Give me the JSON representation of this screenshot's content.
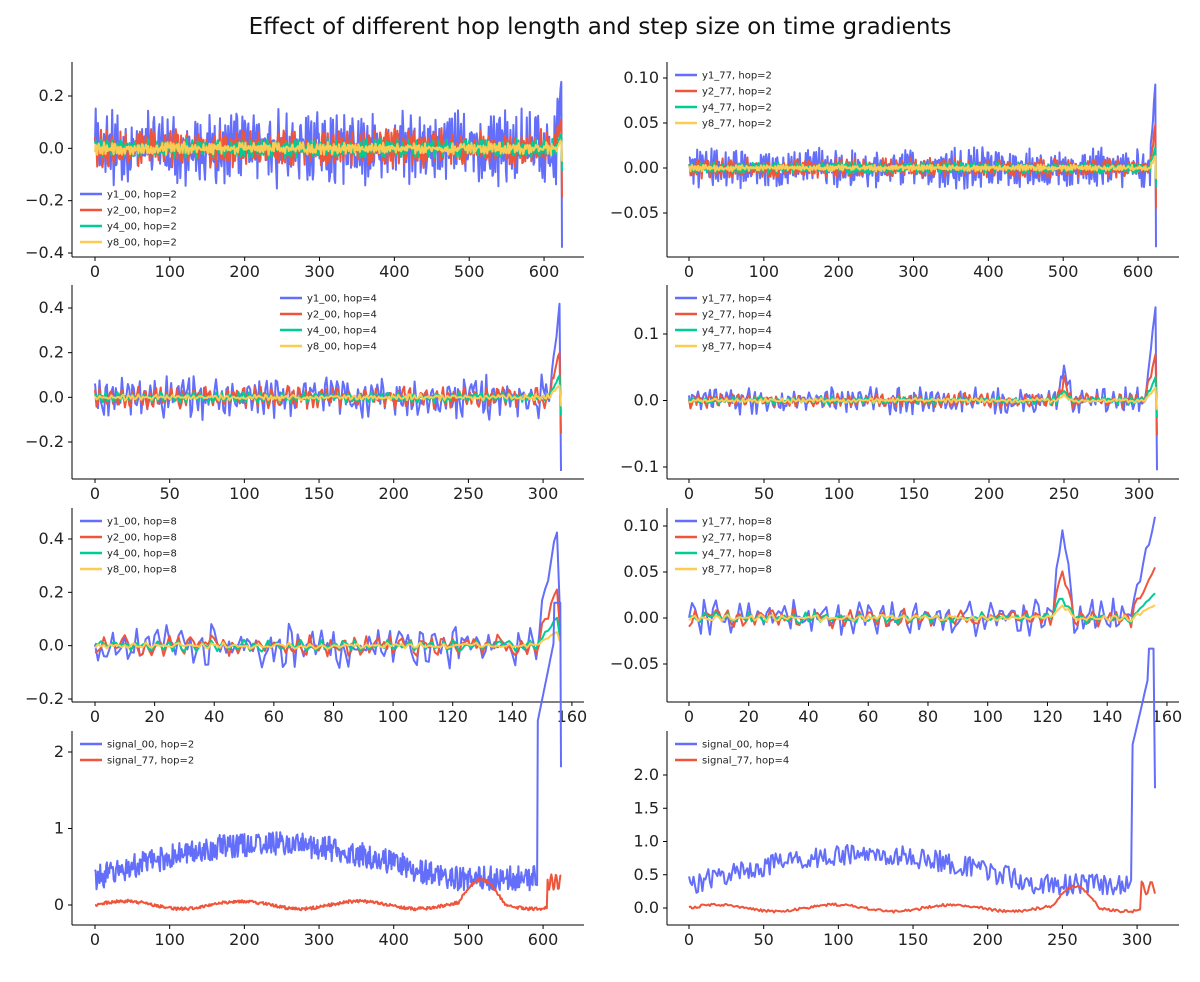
{
  "title": "Effect of different hop length and step size on time gradients",
  "colors": {
    "y1": "#636efa",
    "y2": "#ef553b",
    "y4": "#00cc96",
    "y8": "#fecb52",
    "axis": "#000000"
  },
  "chart_data": [
    {
      "type": "line",
      "position": "row 1, left",
      "legend": "bottom-left",
      "x_range": [
        0,
        624
      ],
      "ylim": [
        -0.4,
        0.33
      ],
      "xticks": [
        "0",
        "100",
        "200",
        "300",
        "400",
        "500",
        "600"
      ],
      "yticks": [
        "−0.4",
        "−0.2",
        "0.0",
        "0.2"
      ],
      "grid": false,
      "series": [
        {
          "name": "y1_00, hop=2",
          "color": "#636efa",
          "spread": 0.12,
          "end_values": [
            0.3,
            -0.38
          ]
        },
        {
          "name": "y2_00, hop=2",
          "color": "#ef553b",
          "spread": 0.06,
          "end_values": [
            0.12,
            -0.19
          ]
        },
        {
          "name": "y4_00, hop=2",
          "color": "#00cc96",
          "spread": 0.03,
          "end_values": [
            0.06,
            -0.09
          ]
        },
        {
          "name": "y8_00, hop=2",
          "color": "#fecb52",
          "spread": 0.02,
          "end_values": [
            0.03,
            -0.05
          ]
        }
      ]
    },
    {
      "type": "line",
      "position": "row 1, right",
      "legend": "top-left",
      "x_range": [
        0,
        624
      ],
      "ylim": [
        -0.09,
        0.11
      ],
      "xticks": [
        "0",
        "100",
        "200",
        "300",
        "400",
        "500",
        "600"
      ],
      "yticks": [
        "−0.05",
        "0.00",
        "0.05",
        "0.10"
      ],
      "grid": false,
      "series": [
        {
          "name": "y1_77, hop=2",
          "color": "#636efa",
          "spread": 0.018,
          "end_values": [
            0.107,
            -0.088
          ]
        },
        {
          "name": "y2_77, hop=2",
          "color": "#ef553b",
          "spread": 0.009,
          "end_values": [
            0.055,
            -0.045
          ]
        },
        {
          "name": "y4_77, hop=2",
          "color": "#00cc96",
          "spread": 0.005,
          "end_values": [
            0.027,
            -0.022
          ]
        },
        {
          "name": "y8_77, hop=2",
          "color": "#fecb52",
          "spread": 0.003,
          "end_values": [
            0.015,
            -0.012
          ]
        }
      ]
    },
    {
      "type": "line",
      "position": "row 2, left",
      "legend": "top-center",
      "x_range": [
        0,
        312
      ],
      "ylim": [
        -0.34,
        0.47
      ],
      "xticks": [
        "0",
        "50",
        "100",
        "150",
        "200",
        "250",
        "300"
      ],
      "yticks": [
        "−0.2",
        "0.0",
        "0.2",
        "0.4"
      ],
      "grid": false,
      "series": [
        {
          "name": "y1_00, hop=4",
          "color": "#636efa",
          "spread": 0.08,
          "end_values": [
            0.47,
            -0.33
          ]
        },
        {
          "name": "y2_00, hop=4",
          "color": "#ef553b",
          "spread": 0.04,
          "end_values": [
            0.23,
            -0.16
          ]
        },
        {
          "name": "y4_00, hop=4",
          "color": "#00cc96",
          "spread": 0.02,
          "end_values": [
            0.11,
            -0.08
          ]
        },
        {
          "name": "y8_00, hop=4",
          "color": "#fecb52",
          "spread": 0.012,
          "end_values": [
            0.06,
            -0.04
          ]
        }
      ]
    },
    {
      "type": "line",
      "position": "row 2, right",
      "legend": "top-left",
      "x_range": [
        0,
        312
      ],
      "ylim": [
        -0.105,
        0.165
      ],
      "xticks": [
        "0",
        "50",
        "100",
        "150",
        "200",
        "250",
        "300"
      ],
      "yticks": [
        "−0.1",
        "0.0",
        "0.1"
      ],
      "grid": false,
      "series": [
        {
          "name": "y1_77, hop=4",
          "color": "#636efa",
          "spread": 0.017,
          "end_values": [
            0.16,
            -0.105
          ]
        },
        {
          "name": "y2_77, hop=4",
          "color": "#ef553b",
          "spread": 0.009,
          "end_values": [
            0.08,
            -0.052
          ]
        },
        {
          "name": "y4_77, hop=4",
          "color": "#00cc96",
          "spread": 0.005,
          "end_values": [
            0.04,
            -0.026
          ]
        },
        {
          "name": "y8_77, hop=4",
          "color": "#fecb52",
          "spread": 0.003,
          "end_values": [
            0.022,
            -0.014
          ]
        }
      ]
    },
    {
      "type": "line",
      "position": "row 3, left",
      "legend": "top-left",
      "x_range": [
        0,
        156
      ],
      "ylim": [
        -0.18,
        0.49
      ],
      "xticks": [
        "0",
        "20",
        "40",
        "60",
        "80",
        "100",
        "120",
        "140",
        "160"
      ],
      "yticks": [
        "−0.2",
        "0.0",
        "0.2",
        "0.4"
      ],
      "grid": false,
      "series": [
        {
          "name": "y1_00, hop=8",
          "color": "#636efa",
          "spread": 0.07,
          "end_values": [
            0.49,
            0.12
          ]
        },
        {
          "name": "y2_00, hop=8",
          "color": "#ef553b",
          "spread": 0.035,
          "end_values": [
            0.24,
            0.06
          ]
        },
        {
          "name": "y4_00, hop=8",
          "color": "#00cc96",
          "spread": 0.018,
          "end_values": [
            0.12,
            0.03
          ]
        },
        {
          "name": "y8_00, hop=8",
          "color": "#fecb52",
          "spread": 0.01,
          "end_values": [
            0.06,
            0.015
          ]
        }
      ]
    },
    {
      "type": "line",
      "position": "row 3, right",
      "legend": "top-left",
      "x_range": [
        0,
        156
      ],
      "ylim": [
        -0.08,
        0.11
      ],
      "xticks": [
        "0",
        "20",
        "40",
        "60",
        "80",
        "100",
        "120",
        "140",
        "160"
      ],
      "yticks": [
        "−0.05",
        "0.00",
        "0.05",
        "0.10"
      ],
      "grid": false,
      "series": [
        {
          "name": "y1_77, hop=8",
          "color": "#636efa",
          "spread": 0.017,
          "end_values": [
            0.11,
            0.11
          ]
        },
        {
          "name": "y2_77, hop=8",
          "color": "#ef553b",
          "spread": 0.009,
          "end_values": [
            0.055,
            0.055
          ]
        },
        {
          "name": "y4_77, hop=8",
          "color": "#00cc96",
          "spread": 0.005,
          "end_values": [
            0.027,
            0.027
          ]
        },
        {
          "name": "y8_77, hop=8",
          "color": "#fecb52",
          "spread": 0.003,
          "end_values": [
            0.014,
            0.014
          ]
        }
      ]
    },
    {
      "type": "line",
      "position": "row 4, left",
      "legend": "top-left",
      "x_range": [
        0,
        624
      ],
      "ylim": [
        -0.1,
        2.15
      ],
      "xticks": [
        "0",
        "100",
        "200",
        "300",
        "400",
        "500",
        "600"
      ],
      "yticks": [
        "0",
        "1",
        "2"
      ],
      "grid": false,
      "series": [
        {
          "name": "signal_00, hop=2",
          "color": "#636efa",
          "start_value": 0.3,
          "peak_value": 2.15,
          "end_value": 1.8
        },
        {
          "name": "signal_77, hop=2",
          "color": "#ef553b",
          "start_value": 0.0,
          "peak_value": 0.4,
          "end_value": 0.3
        }
      ]
    },
    {
      "type": "line",
      "position": "row 4, right",
      "legend": "top-left",
      "x_range": [
        0,
        312
      ],
      "ylim": [
        -0.1,
        2.1
      ],
      "xticks": [
        "0",
        "50",
        "100",
        "150",
        "200",
        "250",
        "300"
      ],
      "yticks": [
        "0.0",
        "0.5",
        "1.0",
        "1.5",
        "2.0"
      ],
      "grid": false,
      "series": [
        {
          "name": "signal_00, hop=4",
          "color": "#636efa",
          "start_value": 0.3,
          "peak_value": 2.1,
          "end_value": 1.8
        },
        {
          "name": "signal_77, hop=4",
          "color": "#ef553b",
          "start_value": 0.0,
          "peak_value": 0.4,
          "end_value": 0.3
        }
      ]
    }
  ]
}
